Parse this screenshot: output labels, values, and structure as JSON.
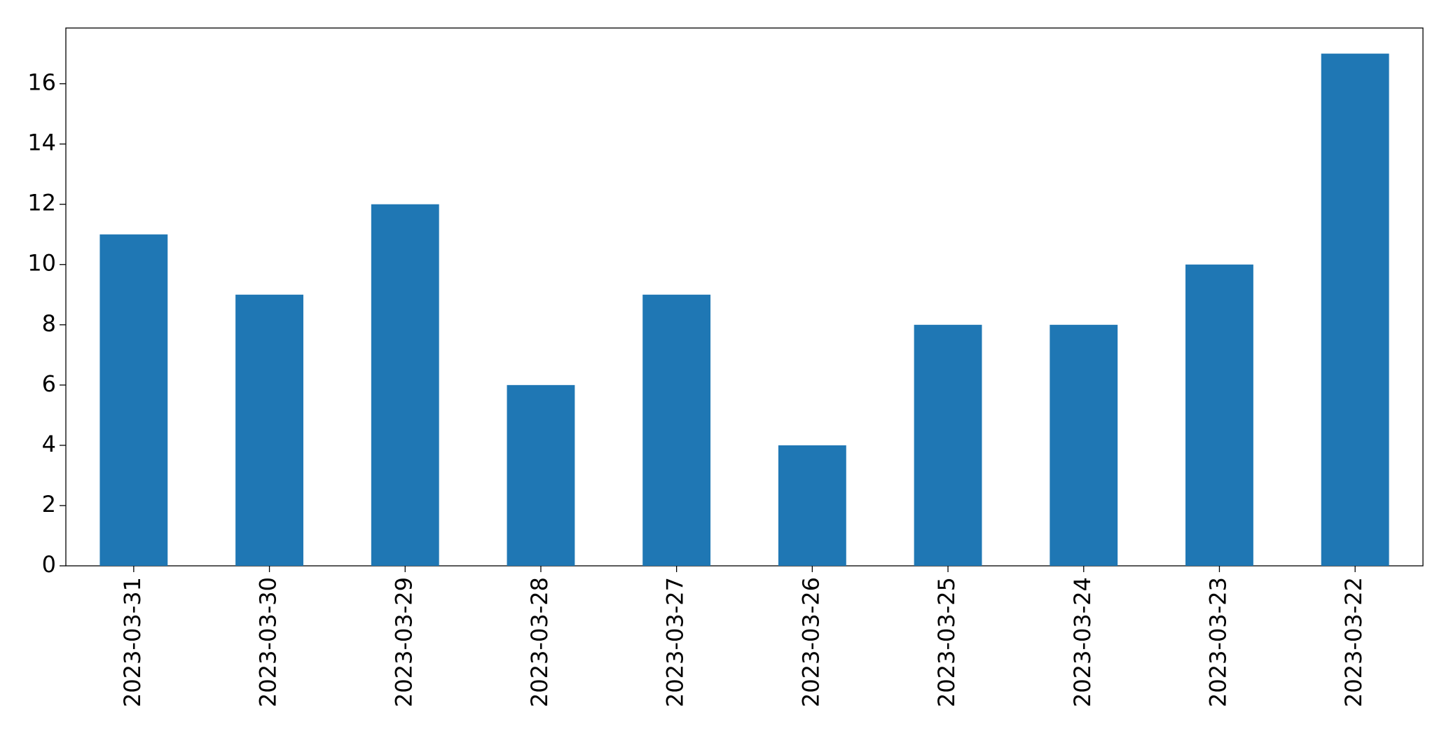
{
  "chart_data": {
    "type": "bar",
    "categories": [
      "2023-03-31",
      "2023-03-30",
      "2023-03-29",
      "2023-03-28",
      "2023-03-27",
      "2023-03-26",
      "2023-03-25",
      "2023-03-24",
      "2023-03-23",
      "2023-03-22"
    ],
    "values": [
      11,
      9,
      12,
      6,
      9,
      4,
      8,
      8,
      10,
      17
    ],
    "color": "#1f77b4",
    "ylim": [
      0,
      17.85
    ],
    "yticks": [
      0,
      2,
      4,
      6,
      8,
      10,
      12,
      14,
      16
    ],
    "grid": false
  }
}
